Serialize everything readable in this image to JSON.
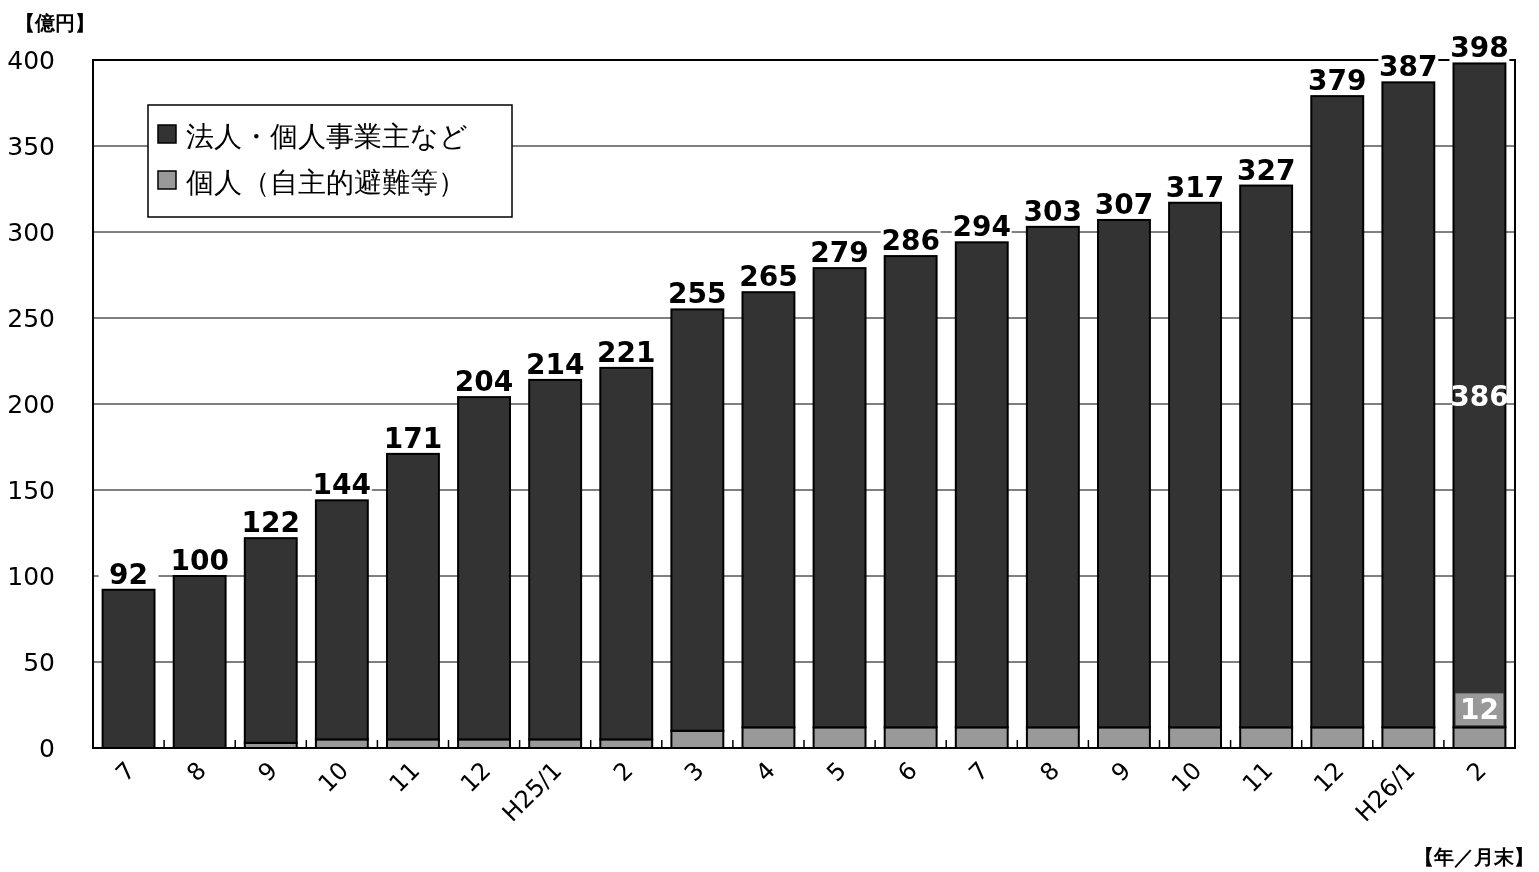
{
  "chart_data": {
    "type": "bar",
    "stacked": true,
    "ylabel": "【億円】",
    "xlabel": "【年／月末】",
    "categories": [
      "7",
      "8",
      "9",
      "10",
      "11",
      "12",
      "H25/1",
      "2",
      "3",
      "4",
      "5",
      "6",
      "7",
      "8",
      "9",
      "10",
      "11",
      "12",
      "H26/1",
      "2"
    ],
    "series": [
      {
        "name": "個人（自主的避難等）",
        "color": "#999999",
        "values": [
          0,
          0,
          3,
          5,
          5,
          5,
          5,
          5,
          10,
          12,
          12,
          12,
          12,
          12,
          12,
          12,
          12,
          12,
          12,
          12
        ],
        "value_labels": [
          null,
          null,
          null,
          null,
          null,
          null,
          null,
          null,
          null,
          null,
          null,
          null,
          null,
          null,
          null,
          null,
          null,
          null,
          null,
          "12"
        ]
      },
      {
        "name": "法人・個人事業主など",
        "color": "#333333",
        "values": [
          92,
          100,
          119,
          139,
          166,
          199,
          209,
          216,
          245,
          253,
          267,
          274,
          282,
          291,
          295,
          305,
          315,
          367,
          375,
          386
        ],
        "value_labels": [
          null,
          null,
          null,
          null,
          null,
          null,
          null,
          null,
          null,
          null,
          null,
          null,
          null,
          null,
          null,
          null,
          null,
          null,
          null,
          "386"
        ]
      }
    ],
    "totals": [
      "92",
      "100",
      "122",
      "144",
      "171",
      "204",
      "214",
      "221",
      "255",
      "265",
      "279",
      "286",
      "294",
      "303",
      "307",
      "317",
      "327",
      "379",
      "387",
      "398"
    ],
    "ylim": [
      0,
      400
    ],
    "yticks": [
      0,
      50,
      100,
      150,
      200,
      250,
      300,
      350,
      400
    ],
    "grid": "y",
    "legend": "top left"
  }
}
